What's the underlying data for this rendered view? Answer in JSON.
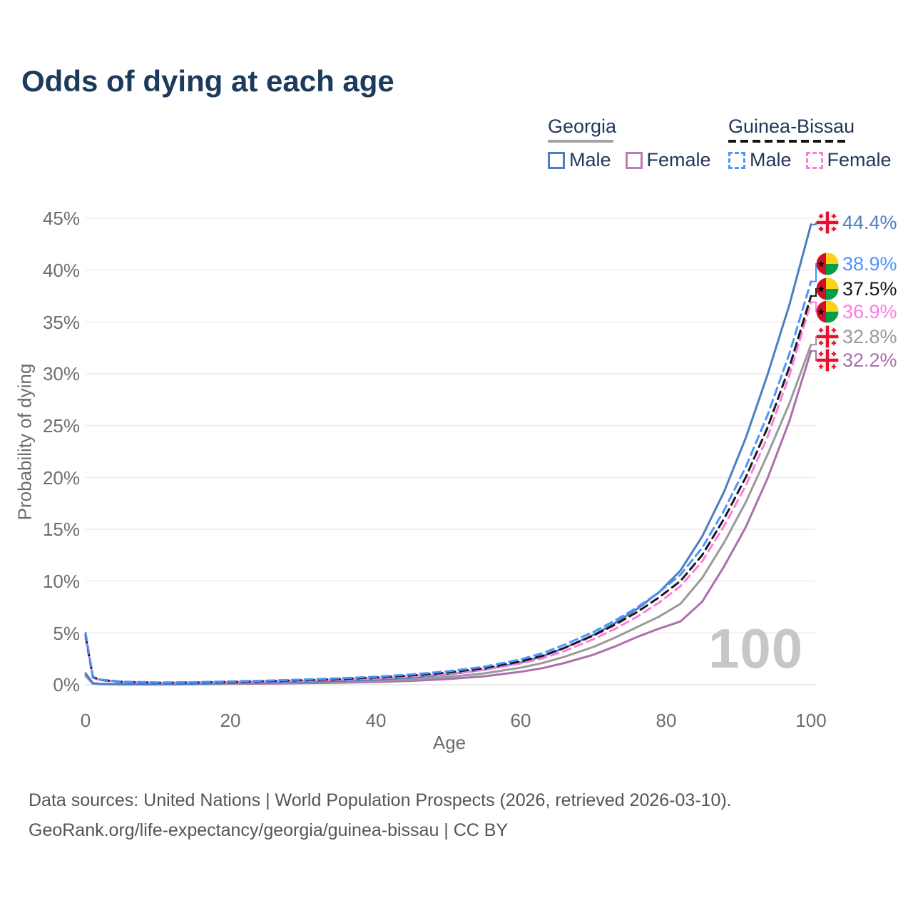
{
  "title": "Odds of dying at each age",
  "legend": {
    "groups": [
      {
        "name": "Georgia",
        "line_style": "solid",
        "underline_color": "#a3a3a3",
        "items": [
          {
            "label": "Male",
            "color": "#4a7fc0",
            "dash": false
          },
          {
            "label": "Female",
            "color": "#bb7cb6",
            "dash": false
          }
        ]
      },
      {
        "name": "Guinea-Bissau",
        "line_style": "dashed",
        "underline_color": "#151515",
        "items": [
          {
            "label": "Male",
            "color": "#4d94ff",
            "dash": true
          },
          {
            "label": "Female",
            "color": "#ff7bdf",
            "dash": true
          }
        ]
      }
    ]
  },
  "y_axis": {
    "label": "Probability of dying",
    "ticks": [
      "0%",
      "5%",
      "10%",
      "15%",
      "20%",
      "25%",
      "30%",
      "35%",
      "40%",
      "45%"
    ]
  },
  "x_axis": {
    "label": "Age",
    "ticks": [
      "0",
      "20",
      "40",
      "60",
      "80",
      "100"
    ]
  },
  "hover_age_watermark": "100",
  "footer": {
    "line1": "Data sources: United Nations | World Population Prospects (2026, retrieved 2026-03-10).",
    "line2": "GeoRank.org/life-expectancy/georgia/guinea-bissau | CC BY"
  },
  "chart_data": {
    "type": "line",
    "title": "Odds of dying at each age",
    "xlabel": "Age",
    "ylabel": "Probability of dying",
    "xlim": [
      0,
      100
    ],
    "ylim": [
      0,
      45
    ],
    "x_ticks": [
      0,
      20,
      40,
      60,
      80,
      100
    ],
    "y_ticks_pct": [
      0,
      5,
      10,
      15,
      20,
      25,
      30,
      35,
      40,
      45
    ],
    "grid": "horizontal",
    "legend_position": "top-right",
    "ages": [
      0,
      1,
      2,
      5,
      10,
      15,
      20,
      25,
      30,
      35,
      40,
      45,
      50,
      55,
      60,
      63,
      66,
      70,
      73,
      76,
      79,
      82,
      85,
      88,
      91,
      94,
      97,
      100
    ],
    "series": [
      {
        "name": "Georgia Male",
        "country": "Georgia",
        "sex": "Male",
        "flag": "georgia",
        "color": "#4a7fc0",
        "dash": false,
        "end_label": "44.4%",
        "end_value": 44.4,
        "values": [
          1.1,
          0.15,
          0.08,
          0.05,
          0.05,
          0.09,
          0.17,
          0.22,
          0.28,
          0.38,
          0.5,
          0.7,
          1.0,
          1.45,
          2.15,
          2.75,
          3.55,
          4.8,
          5.95,
          7.3,
          8.9,
          11.0,
          14.3,
          18.6,
          23.8,
          29.9,
          36.6,
          44.4
        ]
      },
      {
        "name": "Guinea-Bissau Male",
        "country": "Guinea-Bissau",
        "sex": "Male",
        "flag": "guinea-bissau",
        "color": "#4d94ff",
        "dash": true,
        "end_label": "38.9%",
        "end_value": 38.9,
        "values": [
          5.0,
          0.8,
          0.5,
          0.3,
          0.22,
          0.25,
          0.32,
          0.4,
          0.5,
          0.62,
          0.78,
          1.0,
          1.3,
          1.75,
          2.45,
          3.05,
          3.85,
          5.1,
          6.2,
          7.45,
          8.9,
          10.6,
          13.2,
          16.8,
          21.0,
          26.0,
          31.9,
          38.9
        ]
      },
      {
        "name": "Guinea-Bissau Both sexes",
        "country": "Guinea-Bissau",
        "sex": "Both",
        "flag": "guinea-bissau",
        "color": "#1a1a1a",
        "dash": true,
        "end_label": "37.5%",
        "end_value": 37.5,
        "values": [
          4.8,
          0.75,
          0.47,
          0.28,
          0.2,
          0.22,
          0.28,
          0.35,
          0.44,
          0.55,
          0.7,
          0.9,
          1.18,
          1.6,
          2.25,
          2.8,
          3.55,
          4.75,
          5.8,
          7.0,
          8.4,
          10.0,
          12.5,
          16.0,
          20.0,
          24.8,
          30.6,
          37.5
        ]
      },
      {
        "name": "Guinea-Bissau Female",
        "country": "Guinea-Bissau",
        "sex": "Female",
        "flag": "guinea-bissau",
        "color": "#ff7bdf",
        "dash": true,
        "end_label": "36.9%",
        "end_value": 36.9,
        "values": [
          4.5,
          0.7,
          0.44,
          0.26,
          0.18,
          0.2,
          0.25,
          0.31,
          0.38,
          0.48,
          0.6,
          0.8,
          1.05,
          1.45,
          2.05,
          2.55,
          3.25,
          4.4,
          5.4,
          6.55,
          7.9,
          9.5,
          11.9,
          15.3,
          19.2,
          23.9,
          29.8,
          36.9
        ]
      },
      {
        "name": "Georgia Both sexes",
        "country": "Georgia",
        "sex": "Both",
        "flag": "georgia",
        "color": "#9a9a9a",
        "dash": false,
        "end_label": "32.8%",
        "end_value": 32.8,
        "values": [
          0.95,
          0.12,
          0.07,
          0.04,
          0.04,
          0.07,
          0.12,
          0.16,
          0.21,
          0.28,
          0.37,
          0.52,
          0.75,
          1.1,
          1.65,
          2.1,
          2.7,
          3.65,
          4.55,
          5.55,
          6.55,
          7.8,
          10.3,
          13.7,
          17.6,
          22.2,
          27.1,
          32.8
        ]
      },
      {
        "name": "Georgia Female",
        "country": "Georgia",
        "sex": "Female",
        "flag": "georgia",
        "color": "#ab6fae",
        "dash": false,
        "end_label": "32.2%",
        "end_value": 32.2,
        "values": [
          0.85,
          0.1,
          0.06,
          0.03,
          0.03,
          0.05,
          0.08,
          0.11,
          0.15,
          0.2,
          0.27,
          0.38,
          0.55,
          0.82,
          1.25,
          1.6,
          2.1,
          2.9,
          3.7,
          4.6,
          5.4,
          6.1,
          8.0,
          11.4,
          15.2,
          19.9,
          25.4,
          32.2
        ]
      }
    ],
    "flag_colors": {
      "georgia_red": "#e8112d",
      "georgia_bg": "#f2f2f2",
      "gb_red": "#ce1126",
      "gb_yellow": "#fcd116",
      "gb_green": "#009e49",
      "gb_star": "#000000"
    }
  }
}
